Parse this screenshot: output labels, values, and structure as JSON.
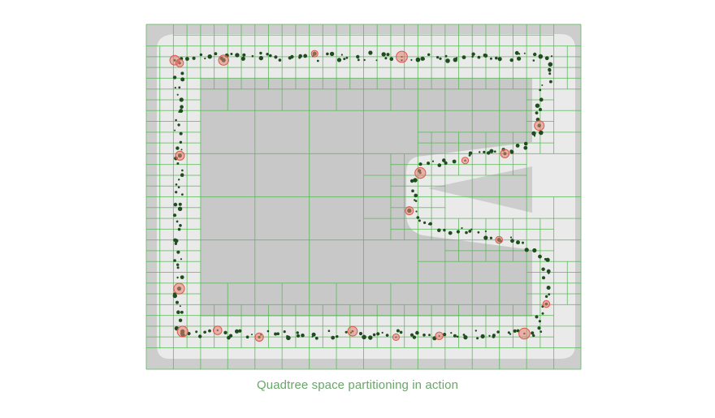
{
  "caption": "Quadtree space partitioning in action",
  "colors": {
    "outer_field": "#cdcdcd",
    "track": "#eaeaea",
    "inner_field": "#c8c8c8",
    "grid_line": "#58b558",
    "entity_dot": "#1e4d1e",
    "highlight_fill": "#e57f73",
    "highlight_ring": "#d9574b",
    "caption_text": "#6aa66a"
  },
  "icons": {
    "entity": "dark-green-dot",
    "collision": "red-circle"
  }
}
